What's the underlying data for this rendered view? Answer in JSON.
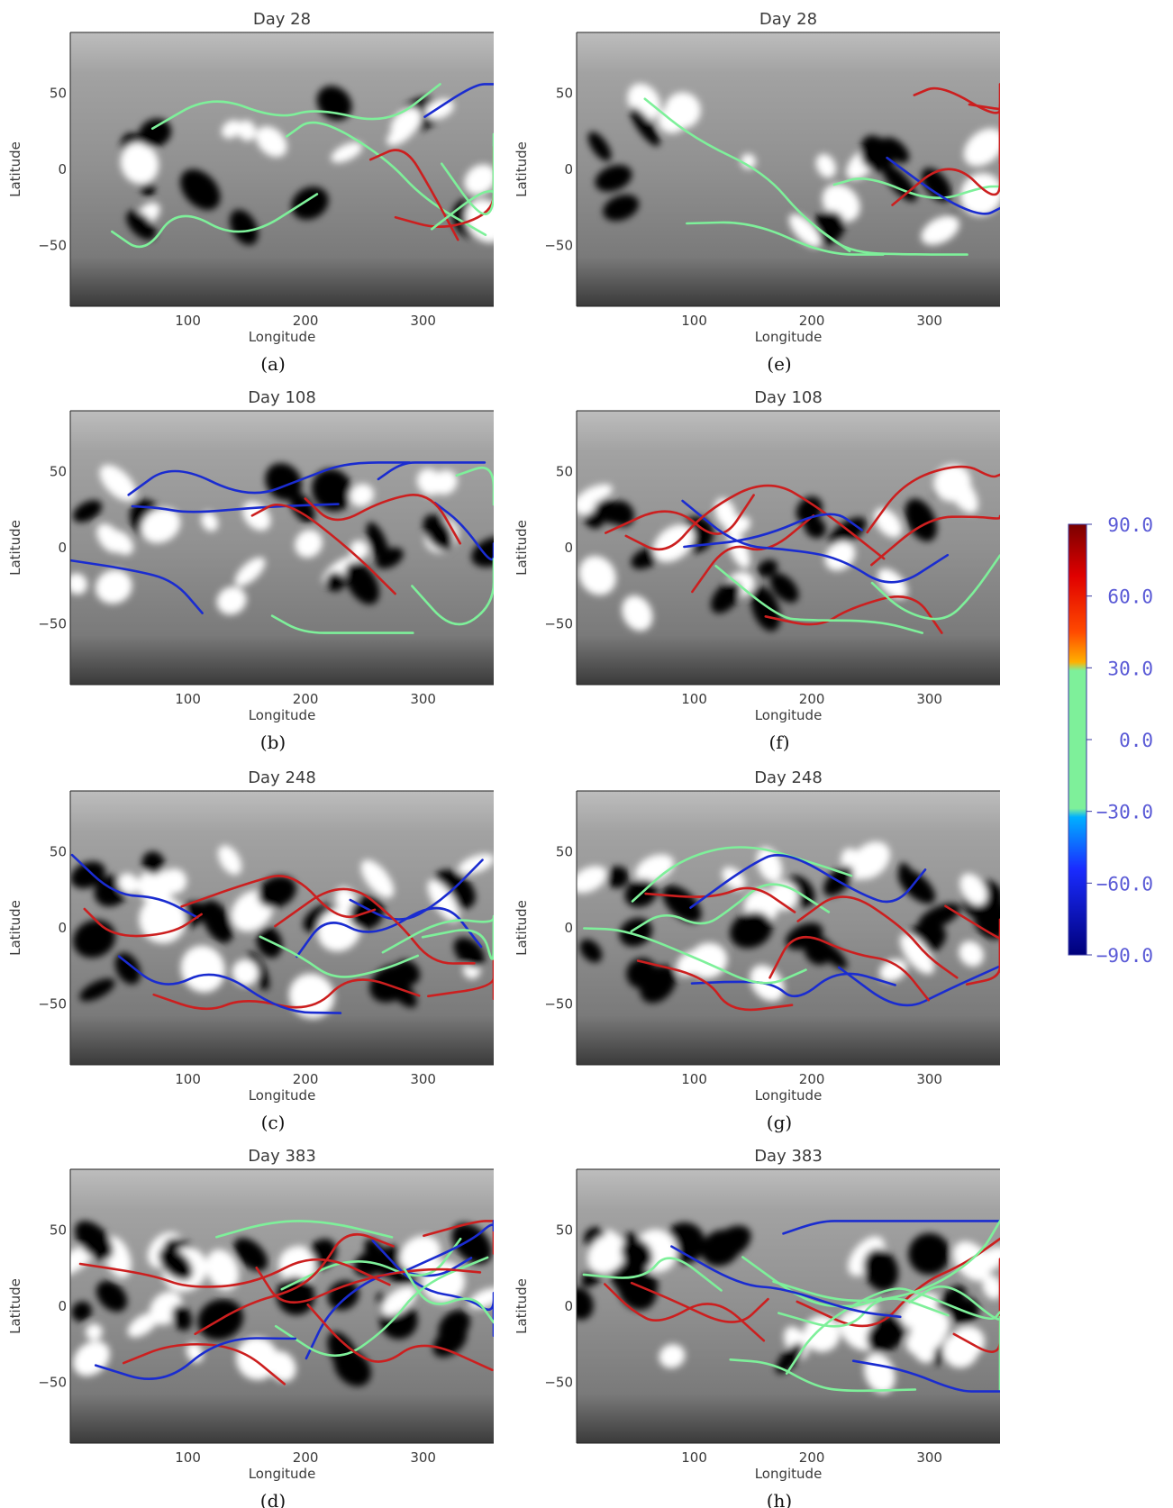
{
  "chart_data": {
    "type": "map",
    "description_axes": {
      "xlabel": "Longitude",
      "ylabel": "Latitude",
      "xlim": [
        0,
        360
      ],
      "ylim": [
        -90,
        90
      ],
      "xticks": [
        "100",
        "200",
        "300"
      ],
      "yticks": [
        "50",
        "0",
        "−50"
      ]
    },
    "panels": [
      {
        "id": "a",
        "title": "Day 28",
        "caption": "(a)"
      },
      {
        "id": "e",
        "title": "Day 28",
        "caption": "(e)"
      },
      {
        "id": "b",
        "title": "Day 108",
        "caption": "(b)"
      },
      {
        "id": "f",
        "title": "Day 108",
        "caption": "(f)"
      },
      {
        "id": "c",
        "title": "Day 248",
        "caption": "(c)"
      },
      {
        "id": "g",
        "title": "Day 248",
        "caption": "(g)"
      },
      {
        "id": "d",
        "title": "Day 383",
        "caption": "(d)"
      },
      {
        "id": "h",
        "title": "Day 383",
        "caption": "(h)"
      }
    ],
    "colorbar": {
      "range": [
        -90,
        90
      ],
      "ticks": [
        "90.0",
        "60.0",
        "30.0",
        "0.0",
        "−30.0",
        "−60.0",
        "−90.0"
      ],
      "colors": {
        "top": "#7a0000",
        "upper_mid": "#ff2000",
        "band_30": "#ffb000",
        "neutral": "#7ef09a",
        "band_m30": "#00b0ff",
        "lower_mid": "#1a2cff",
        "bottom": "#00007a"
      }
    },
    "line_colors": {
      "positive": "#cc1f1f",
      "neutral": "#7ef09a",
      "negative": "#1a2cd0"
    }
  }
}
